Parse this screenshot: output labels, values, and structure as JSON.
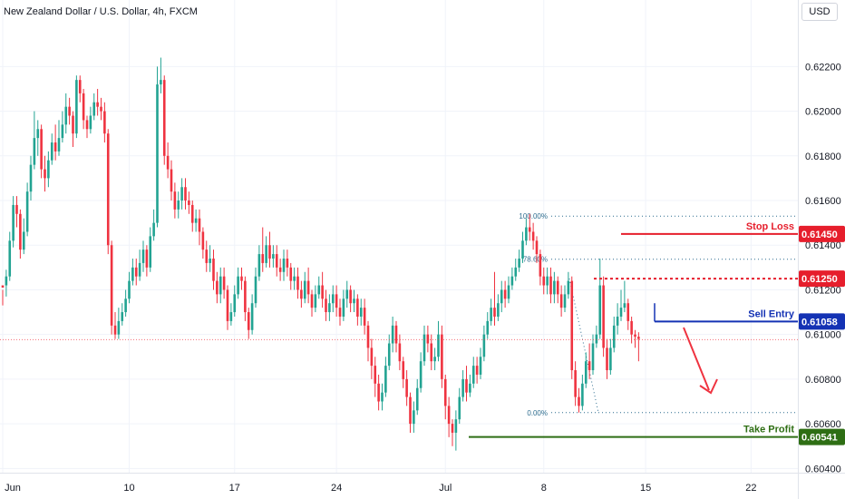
{
  "chart_data": {
    "type": "candlestick",
    "title": "New Zealand Dollar / U.S. Dollar, 4h, FXCM",
    "currency": "USD",
    "y_ticks": [
      "0.62200",
      "0.62000",
      "0.61800",
      "0.61600",
      "0.61400",
      "0.61200",
      "0.61000",
      "0.60800",
      "0.60600",
      "0.60400"
    ],
    "y_tick_values": [
      0.622,
      0.62,
      0.618,
      0.616,
      0.614,
      0.612,
      0.61,
      0.608,
      0.606,
      0.604
    ],
    "x_ticks": [
      "Jun",
      "10",
      "17",
      "24",
      "Jul",
      "8",
      "15",
      "22"
    ],
    "x_tick_index": [
      0,
      36,
      66,
      95,
      126,
      154,
      183,
      213
    ],
    "ylim": [
      0.6032,
      0.6236
    ],
    "levels": {
      "stop_loss": {
        "label": "Stop Loss",
        "price": 0.6145,
        "price_text": "0.61450",
        "color": "#e61e2c"
      },
      "first_resistance": {
        "price": 0.6125,
        "price_text": "0.61250",
        "color": "#e61e2c"
      },
      "sell_entry": {
        "label": "Sell Entry",
        "price": 0.61058,
        "price_text": "0.61058",
        "color": "#1432b4"
      },
      "take_profit": {
        "label": "Take Profit",
        "price": 0.60541,
        "price_text": "0.60541",
        "color": "#2e6e14"
      }
    },
    "fibonacci": [
      {
        "label": "100.00%",
        "price": 0.6153
      },
      {
        "label": "78.60%",
        "price": 0.61337
      },
      {
        "label": "0.00%",
        "price": 0.6065
      }
    ],
    "current_price": 0.60977,
    "colors": {
      "up": "#22a392",
      "down": "#ef3340",
      "grid": "#f0f3fa",
      "axis": "#9598a1"
    },
    "candles": [
      [
        0.6122,
        0.6121,
        0.612,
        0.6113
      ],
      [
        0.6122,
        0.6126,
        0.6129,
        0.6117
      ],
      [
        0.6126,
        0.6142,
        0.6146,
        0.6124
      ],
      [
        0.6142,
        0.6158,
        0.6162,
        0.6139
      ],
      [
        0.6158,
        0.6154,
        0.6162,
        0.6148
      ],
      [
        0.6154,
        0.6138,
        0.6156,
        0.6134
      ],
      [
        0.6138,
        0.6146,
        0.6152,
        0.6136
      ],
      [
        0.6146,
        0.6164,
        0.6168,
        0.6144
      ],
      [
        0.6164,
        0.6176,
        0.618,
        0.616
      ],
      [
        0.6176,
        0.6188,
        0.62,
        0.6174
      ],
      [
        0.6188,
        0.6192,
        0.6196,
        0.618
      ],
      [
        0.6192,
        0.6174,
        0.6194,
        0.617
      ],
      [
        0.6174,
        0.617,
        0.618,
        0.6164
      ],
      [
        0.617,
        0.6178,
        0.6182,
        0.6166
      ],
      [
        0.6178,
        0.6186,
        0.619,
        0.6176
      ],
      [
        0.6186,
        0.6182,
        0.6194,
        0.6178
      ],
      [
        0.6182,
        0.6188,
        0.6196,
        0.618
      ],
      [
        0.6188,
        0.6194,
        0.62,
        0.6186
      ],
      [
        0.6194,
        0.6202,
        0.6208,
        0.619
      ],
      [
        0.6202,
        0.6198,
        0.6206,
        0.6194
      ],
      [
        0.6198,
        0.619,
        0.62,
        0.6184
      ],
      [
        0.619,
        0.6214,
        0.6216,
        0.6188
      ],
      [
        0.6214,
        0.6208,
        0.6216,
        0.6204
      ],
      [
        0.6208,
        0.6196,
        0.621,
        0.6192
      ],
      [
        0.6196,
        0.6192,
        0.6198,
        0.6188
      ],
      [
        0.6192,
        0.6198,
        0.6202,
        0.619
      ],
      [
        0.6198,
        0.6204,
        0.6208,
        0.6196
      ],
      [
        0.6204,
        0.6202,
        0.621,
        0.6198
      ],
      [
        0.6202,
        0.62,
        0.6206,
        0.6196
      ],
      [
        0.62,
        0.619,
        0.6204,
        0.6186
      ],
      [
        0.619,
        0.614,
        0.6192,
        0.6136
      ],
      [
        0.614,
        0.6104,
        0.6142,
        0.61
      ],
      [
        0.6104,
        0.61,
        0.611,
        0.6098
      ],
      [
        0.61,
        0.6106,
        0.6112,
        0.6098
      ],
      [
        0.6106,
        0.611,
        0.6114,
        0.6104
      ],
      [
        0.611,
        0.6116,
        0.612,
        0.6108
      ],
      [
        0.6116,
        0.6124,
        0.6128,
        0.6114
      ],
      [
        0.6124,
        0.613,
        0.6134,
        0.6122
      ],
      [
        0.613,
        0.6126,
        0.6134,
        0.6122
      ],
      [
        0.6126,
        0.6132,
        0.6138,
        0.6124
      ],
      [
        0.6132,
        0.6138,
        0.6142,
        0.6128
      ],
      [
        0.6138,
        0.613,
        0.614,
        0.6126
      ],
      [
        0.613,
        0.6144,
        0.6148,
        0.6128
      ],
      [
        0.6144,
        0.615,
        0.6156,
        0.6142
      ],
      [
        0.615,
        0.6212,
        0.622,
        0.6148
      ],
      [
        0.6212,
        0.6214,
        0.6224,
        0.6208
      ],
      [
        0.6214,
        0.618,
        0.6216,
        0.6176
      ],
      [
        0.618,
        0.6174,
        0.6186,
        0.617
      ],
      [
        0.6174,
        0.6164,
        0.6178,
        0.616
      ],
      [
        0.6164,
        0.6156,
        0.6168,
        0.6152
      ],
      [
        0.6156,
        0.616,
        0.6164,
        0.6152
      ],
      [
        0.616,
        0.6166,
        0.617,
        0.6156
      ],
      [
        0.6166,
        0.616,
        0.617,
        0.6156
      ],
      [
        0.616,
        0.6158,
        0.6164,
        0.6154
      ],
      [
        0.6158,
        0.615,
        0.616,
        0.6146
      ],
      [
        0.615,
        0.6152,
        0.6156,
        0.6146
      ],
      [
        0.6152,
        0.6146,
        0.6156,
        0.614
      ],
      [
        0.6146,
        0.6138,
        0.6148,
        0.6134
      ],
      [
        0.6138,
        0.6132,
        0.6142,
        0.6128
      ],
      [
        0.6132,
        0.6134,
        0.614,
        0.6128
      ],
      [
        0.6134,
        0.6124,
        0.6138,
        0.612
      ],
      [
        0.6124,
        0.6118,
        0.6128,
        0.6114
      ],
      [
        0.6118,
        0.6126,
        0.613,
        0.6114
      ],
      [
        0.6126,
        0.612,
        0.613,
        0.6116
      ],
      [
        0.612,
        0.6106,
        0.6122,
        0.6102
      ],
      [
        0.6106,
        0.611,
        0.6114,
        0.6104
      ],
      [
        0.611,
        0.6118,
        0.6122,
        0.6108
      ],
      [
        0.6118,
        0.6126,
        0.613,
        0.6116
      ],
      [
        0.6126,
        0.6124,
        0.613,
        0.612
      ],
      [
        0.6124,
        0.611,
        0.6126,
        0.6106
      ],
      [
        0.611,
        0.6102,
        0.6112,
        0.6098
      ],
      [
        0.6102,
        0.6114,
        0.6118,
        0.61
      ],
      [
        0.6114,
        0.6126,
        0.613,
        0.6112
      ],
      [
        0.6126,
        0.6136,
        0.614,
        0.6124
      ],
      [
        0.6136,
        0.6132,
        0.6148,
        0.6128
      ],
      [
        0.6132,
        0.614,
        0.6144,
        0.613
      ],
      [
        0.614,
        0.6134,
        0.6146,
        0.613
      ],
      [
        0.6134,
        0.6136,
        0.614,
        0.613
      ],
      [
        0.6136,
        0.613,
        0.614,
        0.6126
      ],
      [
        0.613,
        0.6128,
        0.6134,
        0.6124
      ],
      [
        0.6128,
        0.6134,
        0.6138,
        0.6124
      ],
      [
        0.6134,
        0.613,
        0.6138,
        0.6126
      ],
      [
        0.613,
        0.6124,
        0.6132,
        0.612
      ],
      [
        0.6124,
        0.6126,
        0.613,
        0.612
      ],
      [
        0.6126,
        0.612,
        0.613,
        0.6116
      ],
      [
        0.612,
        0.6116,
        0.6124,
        0.6112
      ],
      [
        0.6116,
        0.6124,
        0.6128,
        0.6114
      ],
      [
        0.6124,
        0.6118,
        0.613,
        0.6114
      ],
      [
        0.6118,
        0.6112,
        0.612,
        0.6108
      ],
      [
        0.6112,
        0.6118,
        0.6122,
        0.611
      ],
      [
        0.6118,
        0.6122,
        0.6126,
        0.6116
      ],
      [
        0.6122,
        0.6116,
        0.6128,
        0.6112
      ],
      [
        0.6116,
        0.611,
        0.612,
        0.6106
      ],
      [
        0.611,
        0.6114,
        0.6118,
        0.6106
      ],
      [
        0.6114,
        0.6118,
        0.6122,
        0.611
      ],
      [
        0.6118,
        0.6112,
        0.6122,
        0.6108
      ],
      [
        0.6112,
        0.6108,
        0.6116,
        0.6104
      ],
      [
        0.6108,
        0.6116,
        0.612,
        0.6106
      ],
      [
        0.6116,
        0.612,
        0.6124,
        0.6112
      ],
      [
        0.612,
        0.6114,
        0.6122,
        0.611
      ],
      [
        0.6114,
        0.6116,
        0.612,
        0.611
      ],
      [
        0.6116,
        0.6108,
        0.6118,
        0.6104
      ],
      [
        0.6108,
        0.6112,
        0.6116,
        0.6104
      ],
      [
        0.6112,
        0.6104,
        0.6116,
        0.61
      ],
      [
        0.6104,
        0.6094,
        0.6106,
        0.6088
      ],
      [
        0.6094,
        0.6086,
        0.6098,
        0.608
      ],
      [
        0.6086,
        0.6078,
        0.609,
        0.6072
      ],
      [
        0.6078,
        0.607,
        0.6082,
        0.6066
      ],
      [
        0.607,
        0.6074,
        0.6078,
        0.6066
      ],
      [
        0.6074,
        0.6086,
        0.609,
        0.6072
      ],
      [
        0.6086,
        0.6096,
        0.61,
        0.6084
      ],
      [
        0.6096,
        0.6104,
        0.6108,
        0.6092
      ],
      [
        0.6104,
        0.6096,
        0.6106,
        0.6092
      ],
      [
        0.6096,
        0.6088,
        0.61,
        0.6084
      ],
      [
        0.6088,
        0.608,
        0.609,
        0.6076
      ],
      [
        0.608,
        0.6072,
        0.6084,
        0.6068
      ],
      [
        0.6072,
        0.606,
        0.6074,
        0.6056
      ],
      [
        0.606,
        0.6066,
        0.607,
        0.6056
      ],
      [
        0.6066,
        0.6076,
        0.608,
        0.6064
      ],
      [
        0.6076,
        0.6088,
        0.6092,
        0.6074
      ],
      [
        0.6088,
        0.61,
        0.6104,
        0.6086
      ],
      [
        0.61,
        0.6096,
        0.6104,
        0.6092
      ],
      [
        0.6096,
        0.6088,
        0.61,
        0.6084
      ],
      [
        0.6088,
        0.609,
        0.6094,
        0.6084
      ],
      [
        0.609,
        0.61,
        0.6106,
        0.6088
      ],
      [
        0.61,
        0.608,
        0.6104,
        0.6076
      ],
      [
        0.608,
        0.6068,
        0.6082,
        0.6062
      ],
      [
        0.6068,
        0.606,
        0.6072,
        0.6054
      ],
      [
        0.606,
        0.6056,
        0.6062,
        0.605
      ],
      [
        0.6056,
        0.6062,
        0.6066,
        0.6048
      ],
      [
        0.6062,
        0.6072,
        0.6076,
        0.606
      ],
      [
        0.6072,
        0.608,
        0.6084,
        0.607
      ],
      [
        0.608,
        0.6074,
        0.6086,
        0.607
      ],
      [
        0.6074,
        0.6078,
        0.6082,
        0.6072
      ],
      [
        0.6078,
        0.6086,
        0.609,
        0.6076
      ],
      [
        0.6086,
        0.6082,
        0.609,
        0.6078
      ],
      [
        0.6082,
        0.609,
        0.6094,
        0.608
      ],
      [
        0.609,
        0.61,
        0.6104,
        0.6088
      ],
      [
        0.61,
        0.6106,
        0.611,
        0.6098
      ],
      [
        0.6106,
        0.6112,
        0.6116,
        0.6104
      ],
      [
        0.6112,
        0.6108,
        0.6128,
        0.6104
      ],
      [
        0.6108,
        0.6114,
        0.6118,
        0.6106
      ],
      [
        0.6114,
        0.612,
        0.6124,
        0.611
      ],
      [
        0.612,
        0.6116,
        0.6124,
        0.6112
      ],
      [
        0.6116,
        0.6122,
        0.6126,
        0.6114
      ],
      [
        0.6122,
        0.6126,
        0.613,
        0.612
      ],
      [
        0.6126,
        0.613,
        0.6134,
        0.6124
      ],
      [
        0.613,
        0.6134,
        0.6138,
        0.6128
      ],
      [
        0.6134,
        0.6142,
        0.6146,
        0.6132
      ],
      [
        0.6142,
        0.6148,
        0.6152,
        0.614
      ],
      [
        0.6148,
        0.6146,
        0.6154,
        0.6142
      ],
      [
        0.6146,
        0.6142,
        0.615,
        0.6138
      ],
      [
        0.6142,
        0.6136,
        0.6144,
        0.6132
      ],
      [
        0.6136,
        0.6126,
        0.6138,
        0.6122
      ],
      [
        0.6126,
        0.6122,
        0.613,
        0.6118
      ],
      [
        0.6122,
        0.6126,
        0.613,
        0.6118
      ],
      [
        0.6126,
        0.6118,
        0.613,
        0.6114
      ],
      [
        0.6118,
        0.6124,
        0.6128,
        0.6114
      ],
      [
        0.6124,
        0.6118,
        0.6126,
        0.6114
      ],
      [
        0.6118,
        0.6112,
        0.6122,
        0.6108
      ],
      [
        0.6112,
        0.6118,
        0.6122,
        0.611
      ],
      [
        0.6118,
        0.6124,
        0.6128,
        0.6116
      ],
      [
        0.6124,
        0.6084,
        0.6126,
        0.608
      ],
      [
        0.6084,
        0.6072,
        0.6088,
        0.6068
      ],
      [
        0.6072,
        0.6068,
        0.6076,
        0.6065
      ],
      [
        0.6068,
        0.6078,
        0.6082,
        0.6066
      ],
      [
        0.6078,
        0.6088,
        0.6092,
        0.6076
      ],
      [
        0.6088,
        0.6084,
        0.6096,
        0.608
      ],
      [
        0.6084,
        0.6096,
        0.61,
        0.6082
      ],
      [
        0.6096,
        0.61,
        0.6104,
        0.6094
      ],
      [
        0.61,
        0.6122,
        0.6134,
        0.6098
      ],
      [
        0.6122,
        0.6094,
        0.6126,
        0.609
      ],
      [
        0.6094,
        0.6084,
        0.6098,
        0.608
      ],
      [
        0.6084,
        0.6094,
        0.6098,
        0.6082
      ],
      [
        0.6094,
        0.6104,
        0.6108,
        0.6092
      ],
      [
        0.6104,
        0.6108,
        0.6114,
        0.61
      ],
      [
        0.6108,
        0.6112,
        0.612,
        0.6106
      ],
      [
        0.6112,
        0.6114,
        0.6124,
        0.611
      ],
      [
        0.6114,
        0.6106,
        0.6116,
        0.6102
      ],
      [
        0.6106,
        0.61,
        0.6108,
        0.6096
      ],
      [
        0.61,
        0.6099,
        0.6102,
        0.6094
      ],
      [
        0.6099,
        0.6098,
        0.6101,
        0.6088
      ]
    ]
  }
}
